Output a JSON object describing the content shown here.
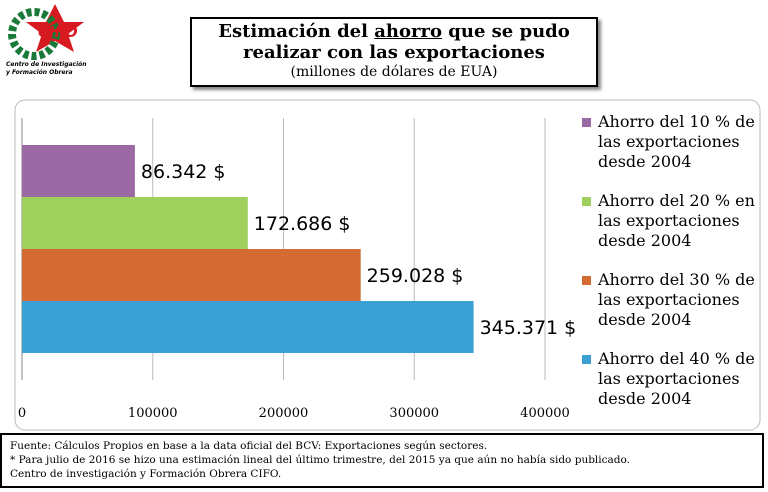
{
  "logo": {
    "name": "CIFO",
    "subtitle": [
      "Centro de Investigación",
      "y Formación Obrera"
    ]
  },
  "chart_data": {
    "type": "bar",
    "orientation": "horizontal",
    "title": [
      "Estimación del",
      "ahorro",
      "que se pudo realizar con las exportaciones"
    ],
    "subtitle": "(millones de dólares de EUA)",
    "series": [
      {
        "name": "Ahorro del 10 % de las exportaciones desde 2004",
        "color": "#9b6aa5",
        "values": [
          86342
        ],
        "value_labels": [
          "86.342 $"
        ]
      },
      {
        "name": "Ahorro del 20 % en las exportaciones desde 2004",
        "color": "#9fcf5c",
        "values": [
          172686
        ],
        "value_labels": [
          "172.686 $"
        ]
      },
      {
        "name": "Ahorro del 30 % de las exportaciones desde 2004",
        "color": "#d36b33",
        "values": [
          259028
        ],
        "value_labels": [
          "259.028 $"
        ]
      },
      {
        "name": "Ahorro del 40 % de las exportaciones desde 2004",
        "color": "#3aa0d4",
        "values": [
          345371
        ],
        "value_labels": [
          "345.371 $"
        ]
      }
    ],
    "xlim": [
      0,
      400000
    ],
    "xticks": [
      0,
      100000,
      200000,
      300000,
      400000
    ],
    "grid": true,
    "legend": "right"
  },
  "footer": [
    "Fuente: Cálculos Propios en base a la data oficial del BCV: Exportaciones según sectores.",
    "* Para julio de 2016 se hizo una estimación lineal del último trimestre, del 2015 ya que aún no había sido publicado.",
    "Centro de investigación y Formación Obrera CIFO."
  ]
}
